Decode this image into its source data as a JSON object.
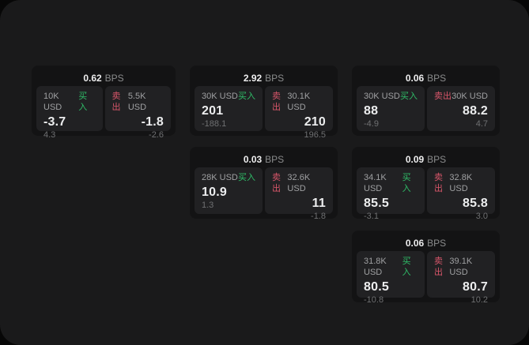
{
  "colors": {
    "window_background": "#1a1a1b",
    "card_background": "#131314",
    "panel_background": "#212123",
    "buy_green": "#2fbd68",
    "sell_red": "#d8566a",
    "value_text": "#ecedee",
    "label_gray": "#9fa0a2",
    "sub_gray": "#6f7072"
  },
  "cards": [
    {
      "bps_value": "0.62",
      "bps_unit": "BPS",
      "buy": {
        "amount": "10K USD",
        "side_label": "买入",
        "value": "-3.7",
        "sub_value": "4.3"
      },
      "sell": {
        "side_label": "卖出",
        "amount": "5.5K USD",
        "value": "-1.8",
        "sub_value": "-2.6"
      }
    },
    {
      "bps_value": "2.92",
      "bps_unit": "BPS",
      "buy": {
        "amount": "30K USD",
        "side_label": "买入",
        "value": "201",
        "sub_value": "-188.1"
      },
      "sell": {
        "side_label": "卖出",
        "amount": "30.1K USD",
        "value": "210",
        "sub_value": "196.5"
      }
    },
    {
      "bps_value": "0.06",
      "bps_unit": "BPS",
      "buy": {
        "amount": "30K USD",
        "side_label": "买入",
        "value": "88",
        "sub_value": "-4.9"
      },
      "sell": {
        "side_label": "卖出",
        "amount": "30K USD",
        "value": "88.2",
        "sub_value": "4.7"
      }
    },
    {
      "bps_value": "0.03",
      "bps_unit": "BPS",
      "buy": {
        "amount": "28K USD",
        "side_label": "买入",
        "value": "10.9",
        "sub_value": "1.3"
      },
      "sell": {
        "side_label": "卖出",
        "amount": "32.6K USD",
        "value": "11",
        "sub_value": "-1.8"
      }
    },
    {
      "bps_value": "0.09",
      "bps_unit": "BPS",
      "buy": {
        "amount": "34.1K USD",
        "side_label": "买入",
        "value": "85.5",
        "sub_value": "-3.1"
      },
      "sell": {
        "side_label": "卖出",
        "amount": "32.8K USD",
        "value": "85.8",
        "sub_value": "3.0"
      }
    },
    {
      "bps_value": "0.06",
      "bps_unit": "BPS",
      "buy": {
        "amount": "31.8K USD",
        "side_label": "买入",
        "value": "80.5",
        "sub_value": "-10.8"
      },
      "sell": {
        "side_label": "卖出",
        "amount": "39.1K USD",
        "value": "80.7",
        "sub_value": "10.2"
      }
    }
  ]
}
